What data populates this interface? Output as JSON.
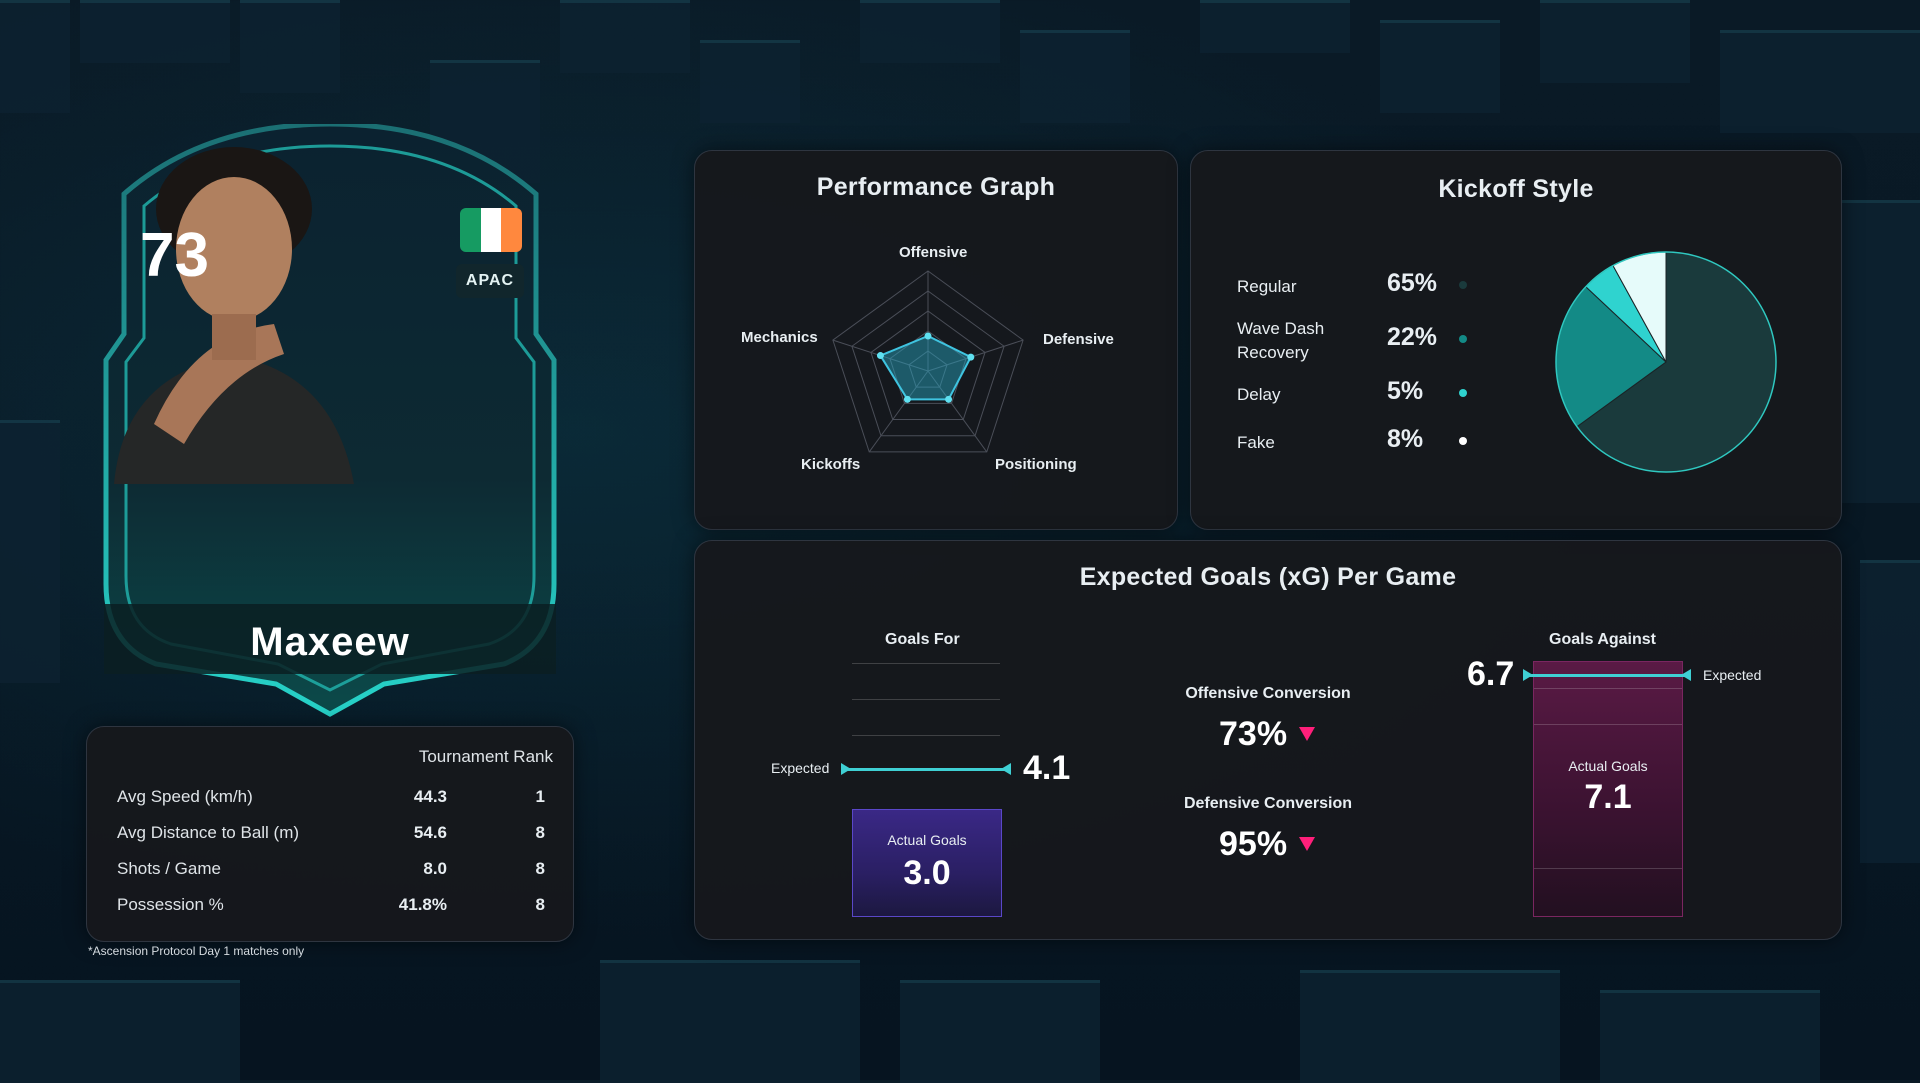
{
  "player": {
    "rating": "73",
    "region": "APAC",
    "name": "Maxeew",
    "flag_colors": [
      "#169b62",
      "#ffffff",
      "#ff883e"
    ]
  },
  "stats": {
    "column_header": "Tournament Rank",
    "rows": [
      {
        "label": "Avg Speed (km/h)",
        "value": "44.3",
        "rank": "1"
      },
      {
        "label": "Avg Distance to Ball (m)",
        "value": "54.6",
        "rank": "8"
      },
      {
        "label": "Shots / Game",
        "value": "8.0",
        "rank": "8"
      },
      {
        "label": "Possession %",
        "value": "41.8%",
        "rank": "8"
      }
    ],
    "footnote": "*Ascension Protocol Day 1 matches only"
  },
  "performance": {
    "title": "Performance Graph",
    "axes": [
      "Offensive",
      "Defensive",
      "Positioning",
      "Kickoffs",
      "Mechanics"
    ]
  },
  "kickoff": {
    "title": "Kickoff Style",
    "items": [
      {
        "label": "Regular",
        "pct": "65%",
        "color": "#1a3a3c"
      },
      {
        "label": "Wave Dash Recovery",
        "pct": "22%",
        "color": "#138a86"
      },
      {
        "label": "Delay",
        "pct": "5%",
        "color": "#2fd3cf"
      },
      {
        "label": "Fake",
        "pct": "8%",
        "color": "#e6fbfa"
      }
    ]
  },
  "xg": {
    "title": "Expected Goals (xG) Per Game",
    "goals_for": {
      "title": "Goals For",
      "expected_label": "Expected",
      "expected": "4.1",
      "actual_label": "Actual Goals",
      "actual": "3.0"
    },
    "goals_against": {
      "title": "Goals Against",
      "expected_label": "Expected",
      "expected": "6.7",
      "actual_label": "Actual Goals",
      "actual": "7.1"
    },
    "offensive_conversion": {
      "label": "Offensive Conversion",
      "value": "73%"
    },
    "defensive_conversion": {
      "label": "Defensive Conversion",
      "value": "95%"
    },
    "accent": "#3fd0d4",
    "down_color": "#ff1f7a"
  },
  "chart_data": [
    {
      "type": "radar",
      "title": "Performance Graph",
      "categories": [
        "Offensive",
        "Defensive",
        "Positioning",
        "Kickoffs",
        "Mechanics"
      ],
      "values": [
        0.35,
        0.45,
        0.35,
        0.35,
        0.5
      ],
      "ylim": [
        0,
        1
      ]
    },
    {
      "type": "pie",
      "title": "Kickoff Style",
      "categories": [
        "Regular",
        "Wave Dash Recovery",
        "Delay",
        "Fake"
      ],
      "values": [
        65,
        22,
        5,
        8
      ]
    }
  ]
}
